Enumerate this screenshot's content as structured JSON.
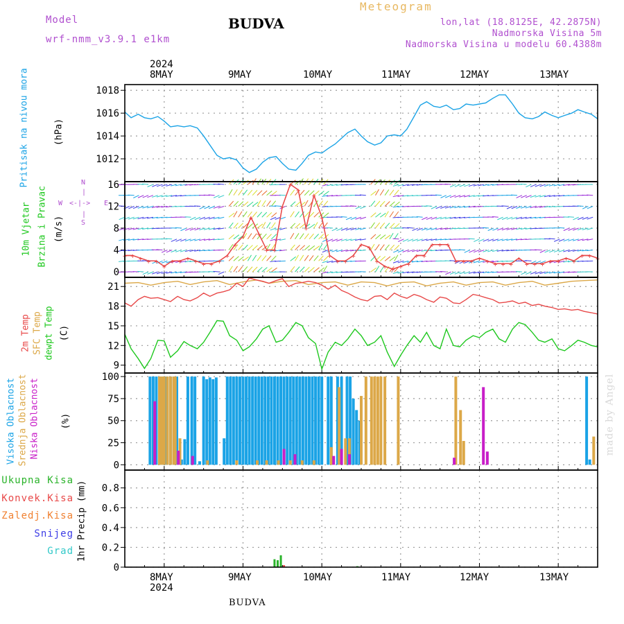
{
  "header": {
    "model_label": "Model",
    "model_name": "wrf-nmm_v3.9.1 e1km",
    "station": "BUDVA",
    "meteogram": "Meteogram",
    "lonlat": "lon,lat (18.8125E, 42.2875N)",
    "altitude": "Nadmorska Visina 5m",
    "model_altitude": "Nadmorska Visina u modelu 60.4388m",
    "footer_station": "BUDVA",
    "watermark": "made by Angel"
  },
  "colors": {
    "pressure": "#1aa3e6",
    "temp2m": "#e84848",
    "sfctemp": "#dca848",
    "dewpoint": "#1ec81e",
    "high_cloud": "#1aa3e6",
    "mid_cloud": "#dca848",
    "low_cloud": "#c81ec8",
    "total_precip": "#2ab32a",
    "conv_precip": "#e84848",
    "frozen_precip": "#f08030",
    "snow": "#3c3ce6",
    "hail": "#30c8c8",
    "wind_trace": "#e84848"
  },
  "x_axis": {
    "year": "2024",
    "day_labels": [
      "8MAY",
      "9MAY",
      "10MAY",
      "11MAY",
      "12MAY",
      "13MAY"
    ]
  },
  "panels": {
    "pressure": {
      "label": "Pritisak na nivou mora",
      "unit": "(hPa)"
    },
    "wind": {
      "label_line1": "10m Vjetar",
      "label_line2": "Brzina i Pravac",
      "unit": "(m/s)",
      "compass": {
        "n": "N",
        "s": "S",
        "w": "W",
        "e": "E"
      }
    },
    "temperature": {
      "label_2m": "2m Temp",
      "label_sfc": "SFC Temp",
      "label_dew": "dewpt Temp",
      "unit": "(C)"
    },
    "cloud": {
      "label_high": "Visoka Oblacnost",
      "label_mid": "Srednja Oblacnost",
      "label_low": "Niska Oblacnost",
      "unit": "(%)"
    },
    "precip": {
      "unit": "1hr Precip (mm)",
      "legend": [
        "Ukupna Kisa",
        "Konvek.Kisa",
        "Zaledj.Kisa",
        "Snijeg",
        "Grad"
      ]
    }
  },
  "chart_data": [
    {
      "type": "line",
      "name": "pressure",
      "x_unit": "day of May 2024",
      "ylim": [
        1010,
        1018.5
      ],
      "yticks": [
        1012,
        1014,
        1016,
        1018
      ],
      "grid": true,
      "series": [
        {
          "color": "#1aa3e6",
          "x": [
            7.5,
            7.58,
            7.67,
            7.75,
            7.83,
            7.92,
            8.0,
            8.08,
            8.17,
            8.25,
            8.33,
            8.42,
            8.5,
            8.58,
            8.67,
            8.75,
            8.83,
            8.92,
            9.0,
            9.08,
            9.17,
            9.25,
            9.33,
            9.42,
            9.5,
            9.58,
            9.67,
            9.75,
            9.83,
            9.92,
            10.0,
            10.08,
            10.17,
            10.25,
            10.33,
            10.42,
            10.5,
            10.58,
            10.67,
            10.75,
            10.83,
            10.92,
            11.0,
            11.08,
            11.17,
            11.25,
            11.33,
            11.42,
            11.5,
            11.58,
            11.67,
            11.75,
            11.83,
            11.92,
            12.0,
            12.08,
            12.17,
            12.25,
            12.33,
            12.42,
            12.5,
            12.58,
            12.67,
            12.75,
            12.83,
            12.92,
            13.0,
            13.08,
            13.17,
            13.25,
            13.33,
            13.42,
            13.5
          ],
          "y": [
            1016.1,
            1015.6,
            1015.9,
            1015.6,
            1015.5,
            1015.7,
            1015.3,
            1014.8,
            1014.9,
            1014.8,
            1014.9,
            1014.7,
            1014.0,
            1013.2,
            1012.3,
            1012.0,
            1012.1,
            1011.9,
            1011.2,
            1010.8,
            1011.1,
            1011.7,
            1012.1,
            1012.2,
            1011.6,
            1011.1,
            1011.0,
            1011.6,
            1012.3,
            1012.6,
            1012.5,
            1012.9,
            1013.3,
            1013.8,
            1014.3,
            1014.6,
            1014.0,
            1013.5,
            1013.2,
            1013.4,
            1014.0,
            1014.1,
            1014.0,
            1014.6,
            1015.7,
            1016.7,
            1017.0,
            1016.6,
            1016.5,
            1016.7,
            1016.3,
            1016.4,
            1016.8,
            1016.7,
            1016.8,
            1016.9,
            1017.3,
            1017.6,
            1017.6,
            1016.8,
            1016.0,
            1015.6,
            1015.5,
            1015.7,
            1016.1,
            1015.8,
            1015.6,
            1015.8,
            1016.0,
            1016.3,
            1016.1,
            1015.9,
            1015.5
          ]
        }
      ]
    },
    {
      "type": "line",
      "name": "wind-speed",
      "x_unit": "day of May 2024",
      "ylim": [
        -1,
        16.5
      ],
      "yticks": [
        0,
        4,
        8,
        12,
        16
      ],
      "grid": true,
      "series": [
        {
          "color": "#e84848",
          "x": [
            7.5,
            7.6,
            7.7,
            7.8,
            7.9,
            8.0,
            8.1,
            8.2,
            8.3,
            8.4,
            8.5,
            8.6,
            8.7,
            8.8,
            8.9,
            9.0,
            9.1,
            9.2,
            9.3,
            9.4,
            9.5,
            9.6,
            9.7,
            9.8,
            9.9,
            10.0,
            10.1,
            10.2,
            10.3,
            10.4,
            10.5,
            10.6,
            10.7,
            10.8,
            10.9,
            11.0,
            11.1,
            11.2,
            11.3,
            11.4,
            11.5,
            11.6,
            11.7,
            11.8,
            11.9,
            12.0,
            12.1,
            12.2,
            12.3,
            12.4,
            12.5,
            12.6,
            12.7,
            12.8,
            12.9,
            13.0,
            13.1,
            13.2,
            13.3,
            13.4,
            13.5
          ],
          "y": [
            3,
            3,
            2.5,
            2,
            2,
            1,
            2,
            2,
            2.5,
            2,
            1.5,
            1.5,
            2,
            3,
            5,
            6.5,
            10,
            7,
            4,
            4,
            12,
            16,
            15,
            8,
            14,
            10,
            3,
            2,
            2,
            3,
            5,
            4.5,
            2,
            1,
            0.5,
            1,
            1.5,
            3,
            3,
            5,
            5,
            5,
            2,
            2,
            2,
            2.5,
            2,
            1.5,
            1.5,
            1.5,
            2.5,
            1.5,
            1.5,
            1.5,
            2,
            2,
            2.5,
            2,
            3,
            3,
            2.5
          ]
        }
      ]
    },
    {
      "type": "line",
      "name": "temperature",
      "x_unit": "day of May 2024",
      "ylim": [
        7.8,
        22.4
      ],
      "yticks": [
        9,
        12,
        15,
        18,
        21
      ],
      "grid": true,
      "series": [
        {
          "color": "#dca848",
          "x": [
            7.5,
            7.67,
            7.83,
            8.0,
            8.17,
            8.33,
            8.5,
            8.67,
            8.83,
            9.0,
            9.17,
            9.33,
            9.5,
            9.67,
            9.83,
            10.0,
            10.17,
            10.33,
            10.5,
            10.67,
            10.83,
            11.0,
            11.17,
            11.33,
            11.5,
            11.67,
            11.83,
            12.0,
            12.17,
            12.33,
            12.5,
            12.67,
            12.83,
            13.0,
            13.17,
            13.33,
            13.5
          ],
          "y": [
            21.5,
            21.6,
            21.2,
            21.6,
            21.8,
            21.3,
            21.7,
            21.9,
            21.3,
            21.7,
            22.0,
            21.5,
            21.8,
            21.9,
            21.3,
            21.6,
            21.7,
            21.2,
            21.7,
            21.6,
            21.1,
            21.6,
            21.7,
            21.1,
            21.5,
            21.7,
            21.2,
            21.6,
            21.7,
            21.2,
            21.6,
            21.8,
            21.2,
            21.5,
            21.8,
            21.9,
            22.0
          ]
        },
        {
          "color": "#e84848",
          "x": [
            7.5,
            7.58,
            7.67,
            7.75,
            7.83,
            7.92,
            8.0,
            8.08,
            8.17,
            8.25,
            8.33,
            8.42,
            8.5,
            8.58,
            8.67,
            8.75,
            8.83,
            8.92,
            9.0,
            9.08,
            9.17,
            9.25,
            9.33,
            9.42,
            9.5,
            9.58,
            9.67,
            9.75,
            9.83,
            9.92,
            10.0,
            10.08,
            10.17,
            10.25,
            10.33,
            10.42,
            10.5,
            10.58,
            10.67,
            10.75,
            10.83,
            10.92,
            11.0,
            11.08,
            11.17,
            11.25,
            11.33,
            11.42,
            11.5,
            11.58,
            11.67,
            11.75,
            11.83,
            11.92,
            12.0,
            12.08,
            12.17,
            12.25,
            12.33,
            12.42,
            12.5,
            12.58,
            12.67,
            12.75,
            12.83,
            12.92,
            13.0,
            13.08,
            13.17,
            13.25,
            13.33,
            13.42,
            13.5
          ],
          "y": [
            18.5,
            18.0,
            19.0,
            19.5,
            19.2,
            19.3,
            19.0,
            18.7,
            19.5,
            19.0,
            18.8,
            19.3,
            20.0,
            19.5,
            20.0,
            20.2,
            20.5,
            21.5,
            21.0,
            22.3,
            22.0,
            21.8,
            21.5,
            21.9,
            22.2,
            21.0,
            21.5,
            21.6,
            21.8,
            21.6,
            21.2,
            20.6,
            21.2,
            20.4,
            20.0,
            19.4,
            19.0,
            18.8,
            19.5,
            19.6,
            19.0,
            20.0,
            19.5,
            19.2,
            19.8,
            19.5,
            19.0,
            18.6,
            19.4,
            19.2,
            18.5,
            18.4,
            19.0,
            19.8,
            19.6,
            19.3,
            19.0,
            18.5,
            18.6,
            18.8,
            18.4,
            18.6,
            18.1,
            18.3,
            18.0,
            17.8,
            17.5,
            17.6,
            17.4,
            17.5,
            17.2,
            17.0,
            16.8
          ]
        },
        {
          "color": "#1ec81e",
          "x": [
            7.5,
            7.58,
            7.67,
            7.75,
            7.83,
            7.92,
            8.0,
            8.08,
            8.17,
            8.25,
            8.33,
            8.42,
            8.5,
            8.58,
            8.67,
            8.75,
            8.83,
            8.92,
            9.0,
            9.08,
            9.17,
            9.25,
            9.33,
            9.42,
            9.5,
            9.58,
            9.67,
            9.75,
            9.83,
            9.92,
            10.0,
            10.08,
            10.17,
            10.25,
            10.33,
            10.42,
            10.5,
            10.58,
            10.67,
            10.75,
            10.83,
            10.92,
            11.0,
            11.08,
            11.17,
            11.25,
            11.33,
            11.42,
            11.5,
            11.58,
            11.67,
            11.75,
            11.83,
            11.92,
            12.0,
            12.08,
            12.17,
            12.25,
            12.33,
            12.42,
            12.5,
            12.58,
            12.67,
            12.75,
            12.83,
            12.92,
            13.0,
            13.08,
            13.17,
            13.25,
            13.33,
            13.42,
            13.5
          ],
          "y": [
            13.7,
            11.5,
            10.0,
            8.5,
            10.0,
            12.8,
            12.7,
            10.2,
            11.2,
            12.6,
            12.0,
            11.5,
            12.5,
            14.0,
            15.8,
            15.7,
            13.5,
            12.8,
            11.2,
            11.8,
            13.0,
            14.5,
            15.0,
            12.5,
            12.8,
            14.0,
            15.5,
            15.0,
            13.2,
            12.3,
            8.4,
            11.0,
            12.5,
            12.0,
            13.0,
            14.5,
            13.5,
            12.0,
            12.5,
            13.5,
            11.0,
            8.8,
            10.5,
            12.0,
            13.5,
            12.5,
            14.0,
            12.0,
            11.5,
            14.5,
            12.0,
            11.8,
            12.8,
            13.5,
            13.2,
            14.0,
            14.5,
            13.0,
            12.5,
            14.5,
            15.5,
            15.2,
            14.0,
            12.8,
            12.5,
            13.0,
            11.5,
            11.2,
            12.0,
            12.8,
            12.5,
            12.0,
            11.8
          ]
        }
      ]
    },
    {
      "type": "bar",
      "name": "cloud-cover",
      "x_unit": "day of May 2024",
      "ylim": [
        -6,
        104
      ],
      "yticks": [
        0,
        25,
        50,
        75,
        100
      ],
      "grid": true,
      "series": [
        {
          "color": "#1aa3e6",
          "x": [
            7.82,
            7.86,
            7.9,
            7.95,
            7.99,
            8.03,
            8.08,
            8.12,
            8.16,
            8.22,
            8.26,
            8.3,
            8.35,
            8.39,
            8.45,
            8.5,
            8.54,
            8.58,
            8.62,
            8.66,
            8.76,
            8.8,
            8.84,
            8.88,
            8.92,
            8.96,
            9.0,
            9.04,
            9.08,
            9.12,
            9.16,
            9.2,
            9.24,
            9.28,
            9.32,
            9.36,
            9.4,
            9.44,
            9.48,
            9.52,
            9.56,
            9.6,
            9.64,
            9.68,
            9.72,
            9.76,
            9.8,
            9.84,
            9.88,
            9.92,
            9.96,
            10.0,
            10.08,
            10.12,
            10.2,
            10.25,
            10.32,
            10.36,
            10.4,
            10.44,
            10.48,
            13.36,
            13.4
          ],
          "y": [
            100,
            100,
            100,
            100,
            100,
            100,
            100,
            100,
            100,
            6,
            29,
            100,
            100,
            100,
            4,
            100,
            97,
            99,
            97,
            99,
            30,
            100,
            100,
            100,
            100,
            100,
            100,
            100,
            100,
            100,
            100,
            100,
            100,
            100,
            100,
            100,
            100,
            100,
            100,
            100,
            100,
            100,
            100,
            100,
            100,
            100,
            100,
            100,
            100,
            100,
            100,
            100,
            100,
            100,
            100,
            100,
            100,
            100,
            75,
            62,
            50,
            100,
            6
          ]
        },
        {
          "color": "#dca848",
          "x": [
            7.94,
            7.97,
            8.0,
            8.04,
            8.08,
            8.12,
            8.14,
            8.2,
            8.55,
            8.92,
            9.18,
            9.3,
            9.45,
            9.6,
            9.75,
            9.9,
            10.12,
            10.22,
            10.3,
            10.35,
            10.5,
            10.56,
            10.63,
            10.67,
            10.71,
            10.75,
            10.8,
            10.97,
            11.7,
            11.76,
            11.8,
            13.45
          ],
          "y": [
            100,
            100,
            100,
            100,
            100,
            100,
            100,
            30,
            5,
            5,
            5,
            5,
            5,
            5,
            5,
            5,
            20,
            88,
            30,
            30,
            78,
            100,
            100,
            100,
            100,
            100,
            100,
            100,
            100,
            62,
            27,
            32
          ]
        },
        {
          "color": "#c81ec8",
          "x": [
            7.88,
            8.18,
            8.36,
            9.52,
            9.66,
            10.15,
            10.25,
            10.35,
            11.68,
            12.05,
            12.1
          ],
          "y": [
            72,
            16,
            10,
            18,
            12,
            10,
            18,
            12,
            8,
            88,
            15
          ]
        }
      ]
    },
    {
      "type": "bar",
      "name": "hourly-precipitation",
      "x_unit": "day of May 2024",
      "ylim": [
        0,
        0.98
      ],
      "yticks": [
        0,
        0.2,
        0.4,
        0.6,
        0.8
      ],
      "grid": true,
      "series": [
        {
          "color": "#2ab32a",
          "x": [
            9.4,
            9.44,
            9.48,
            10.45
          ],
          "y": [
            0.08,
            0.07,
            0.12,
            0.01
          ]
        },
        {
          "color": "#e84848",
          "x": [
            9.52
          ],
          "y": [
            0.02
          ]
        }
      ]
    }
  ]
}
